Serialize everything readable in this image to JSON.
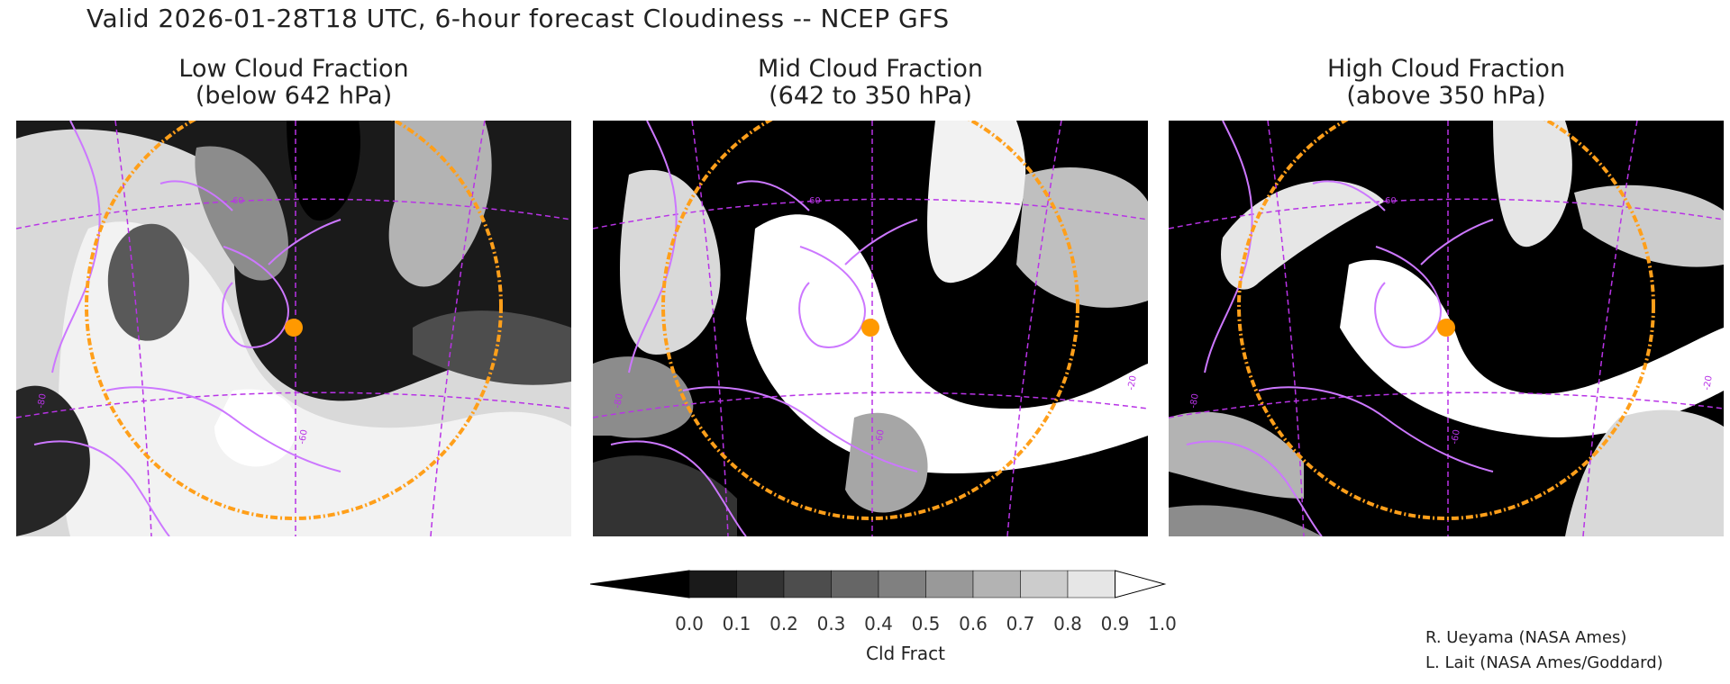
{
  "title": "Valid 2026-01-28T18 UTC, 6-hour forecast Cloudiness -- NCEP GFS",
  "panels": [
    {
      "title": "Low Cloud Fraction\n(below 642 hPa)",
      "grid_labels": [
        "60",
        "-60",
        "-80"
      ]
    },
    {
      "title": "Mid Cloud Fraction\n(642 to 350 hPa)",
      "grid_labels": [
        "60",
        "-60",
        "-80",
        "-20"
      ]
    },
    {
      "title": "High Cloud Fraction\n(above 350 hPa)",
      "grid_labels": [
        "60",
        "-60",
        "-80",
        "-20"
      ]
    }
  ],
  "colorbar": {
    "label": "Cld Fract",
    "ticks": [
      "0.0",
      "0.1",
      "0.2",
      "0.3",
      "0.4",
      "0.5",
      "0.6",
      "0.7",
      "0.8",
      "0.9",
      "1.0"
    ],
    "colors": [
      "#000000",
      "#1a1a1a",
      "#333333",
      "#4d4d4d",
      "#666666",
      "#808080",
      "#999999",
      "#b3b3b3",
      "#cccccc",
      "#e6e6e6",
      "#ffffff"
    ]
  },
  "credits": {
    "line1": "R. Ueyama (NASA Ames)",
    "line2": "L. Lait (NASA Ames/Goddard)"
  },
  "colors": {
    "map_lines": "#cc77ff",
    "grid_lines": "#b833e6",
    "range_ring": "#ff9f1a",
    "site_marker": "#ff9900"
  }
}
